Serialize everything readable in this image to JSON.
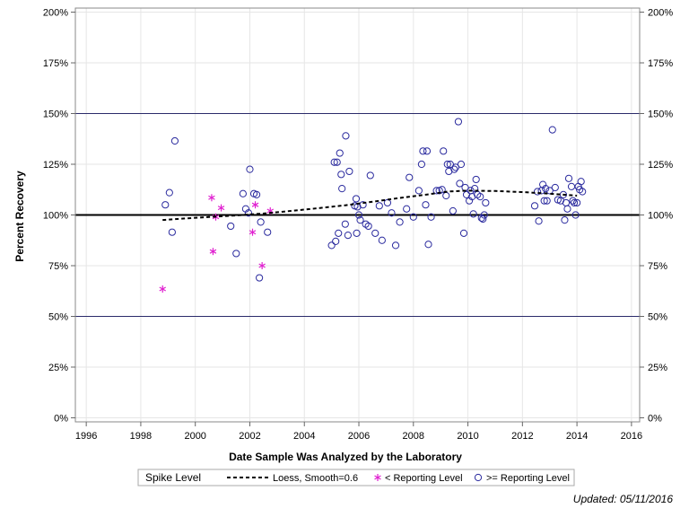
{
  "chart_data": {
    "type": "scatter",
    "xlabel": "Date Sample Was Analyzed by the Laboratory",
    "ylabel": "Percent Recovery",
    "xlim": [
      1995.6,
      2016.3
    ],
    "ylim": [
      -2,
      202
    ],
    "xticks": [
      1996,
      1998,
      2000,
      2002,
      2004,
      2006,
      2008,
      2010,
      2012,
      2014,
      2016
    ],
    "yticks": [
      0,
      25,
      50,
      75,
      100,
      125,
      150,
      175,
      200
    ],
    "ytick_labels": [
      "0%",
      "25%",
      "50%",
      "75%",
      "100%",
      "125%",
      "150%",
      "175%",
      "200%"
    ],
    "reference_lines": {
      "thin": [
        50,
        150
      ],
      "thick": [
        100
      ]
    },
    "gridlines": true,
    "colors": {
      "at_or_above": "#2a2a9e",
      "below": "#e020d0",
      "loess": "#000000",
      "reference": "#2a2a6a",
      "grid": "#e6e6e6"
    },
    "legend": {
      "title": "Spike Level",
      "placement": "bottom",
      "entries": {
        "loess": "Loess, Smooth=0.6",
        "below": "< Reporting Level",
        "at_or_above": ">= Reporting Level"
      }
    },
    "series": [
      {
        "name": ">= Reporting Level",
        "marker": "circle",
        "points": [
          [
            1998.9,
            105
          ],
          [
            1999.05,
            111
          ],
          [
            1999.15,
            91.5
          ],
          [
            1999.25,
            136.5
          ],
          [
            2001.3,
            94.5
          ],
          [
            2001.5,
            81
          ],
          [
            2001.75,
            110.5
          ],
          [
            2001.85,
            103
          ],
          [
            2001.95,
            101
          ],
          [
            2002.0,
            122.5
          ],
          [
            2002.15,
            110.5
          ],
          [
            2002.25,
            110
          ],
          [
            2002.35,
            69
          ],
          [
            2002.4,
            96.5
          ],
          [
            2002.65,
            91.5
          ],
          [
            2005.0,
            85
          ],
          [
            2005.1,
            126
          ],
          [
            2005.15,
            87
          ],
          [
            2005.2,
            126
          ],
          [
            2005.25,
            91
          ],
          [
            2005.3,
            130.5
          ],
          [
            2005.35,
            120
          ],
          [
            2005.38,
            113
          ],
          [
            2005.5,
            95.5
          ],
          [
            2005.52,
            139
          ],
          [
            2005.6,
            90
          ],
          [
            2005.65,
            121.5
          ],
          [
            2005.85,
            104.5
          ],
          [
            2005.9,
            108
          ],
          [
            2005.92,
            91
          ],
          [
            2005.95,
            104
          ],
          [
            2006.0,
            100
          ],
          [
            2006.05,
            97.5
          ],
          [
            2006.15,
            105
          ],
          [
            2006.25,
            95.5
          ],
          [
            2006.35,
            94.5
          ],
          [
            2006.42,
            119.5
          ],
          [
            2006.6,
            91
          ],
          [
            2006.75,
            104.5
          ],
          [
            2006.85,
            87.5
          ],
          [
            2007.05,
            106
          ],
          [
            2007.2,
            101
          ],
          [
            2007.35,
            85
          ],
          [
            2007.5,
            96.5
          ],
          [
            2007.75,
            103
          ],
          [
            2007.85,
            118.5
          ],
          [
            2008.0,
            99
          ],
          [
            2008.2,
            112
          ],
          [
            2008.3,
            125
          ],
          [
            2008.35,
            131.5
          ],
          [
            2008.45,
            105
          ],
          [
            2008.5,
            131.5
          ],
          [
            2008.55,
            85.5
          ],
          [
            2008.65,
            99
          ],
          [
            2008.85,
            112
          ],
          [
            2008.95,
            112
          ],
          [
            2009.05,
            112.5
          ],
          [
            2009.1,
            131.5
          ],
          [
            2009.2,
            109.5
          ],
          [
            2009.25,
            125
          ],
          [
            2009.3,
            121.5
          ],
          [
            2009.35,
            125
          ],
          [
            2009.45,
            102
          ],
          [
            2009.5,
            122.5
          ],
          [
            2009.55,
            123.5
          ],
          [
            2009.65,
            146
          ],
          [
            2009.7,
            115.5
          ],
          [
            2009.75,
            125
          ],
          [
            2009.85,
            91
          ],
          [
            2009.9,
            113.5
          ],
          [
            2009.95,
            110
          ],
          [
            2010.05,
            107
          ],
          [
            2010.1,
            112
          ],
          [
            2010.15,
            109
          ],
          [
            2010.2,
            100.5
          ],
          [
            2010.25,
            113
          ],
          [
            2010.3,
            117.5
          ],
          [
            2010.35,
            110
          ],
          [
            2010.45,
            109
          ],
          [
            2010.5,
            98.5
          ],
          [
            2010.55,
            98
          ],
          [
            2010.6,
            100
          ],
          [
            2010.65,
            106
          ],
          [
            2012.45,
            104.5
          ],
          [
            2012.55,
            111.5
          ],
          [
            2012.6,
            97
          ],
          [
            2012.7,
            112
          ],
          [
            2012.75,
            115
          ],
          [
            2012.8,
            107
          ],
          [
            2012.85,
            113
          ],
          [
            2012.9,
            107
          ],
          [
            2013.0,
            112
          ],
          [
            2013.1,
            142
          ],
          [
            2013.2,
            113.5
          ],
          [
            2013.3,
            107.5
          ],
          [
            2013.4,
            107
          ],
          [
            2013.5,
            110
          ],
          [
            2013.55,
            97.5
          ],
          [
            2013.6,
            106
          ],
          [
            2013.65,
            103
          ],
          [
            2013.7,
            118
          ],
          [
            2013.8,
            114
          ],
          [
            2013.85,
            107
          ],
          [
            2013.9,
            106
          ],
          [
            2013.95,
            100
          ],
          [
            2014.0,
            106
          ],
          [
            2014.05,
            114
          ],
          [
            2014.1,
            112.5
          ],
          [
            2014.15,
            116.5
          ],
          [
            2014.2,
            111.5
          ]
        ]
      },
      {
        "name": "< Reporting Level",
        "marker": "asterisk",
        "points": [
          [
            1998.8,
            63.5
          ],
          [
            2000.6,
            108.5
          ],
          [
            2000.65,
            82
          ],
          [
            2000.75,
            99
          ],
          [
            2000.95,
            103.5
          ],
          [
            2002.1,
            91.5
          ],
          [
            2002.2,
            105
          ],
          [
            2002.45,
            75
          ],
          [
            2002.75,
            102
          ]
        ]
      },
      {
        "name": "Loess, Smooth=0.6",
        "type": "line",
        "style": "dashed",
        "points": [
          [
            1998.8,
            97.5
          ],
          [
            1999.5,
            98.2
          ],
          [
            2000.5,
            99.0
          ],
          [
            2001.5,
            99.8
          ],
          [
            2002.5,
            100.7
          ],
          [
            2003.5,
            102.0
          ],
          [
            2004.5,
            103.3
          ],
          [
            2005.5,
            104.8
          ],
          [
            2006.5,
            106.5
          ],
          [
            2007.5,
            108.4
          ],
          [
            2008.5,
            110.1
          ],
          [
            2009.3,
            111.6
          ],
          [
            2010.0,
            112.0
          ],
          [
            2011.0,
            111.8
          ],
          [
            2012.0,
            111.3
          ],
          [
            2013.0,
            110.5
          ],
          [
            2014.0,
            109.5
          ]
        ]
      }
    ]
  },
  "footer": {
    "updated": "Updated: 05/11/2016"
  }
}
